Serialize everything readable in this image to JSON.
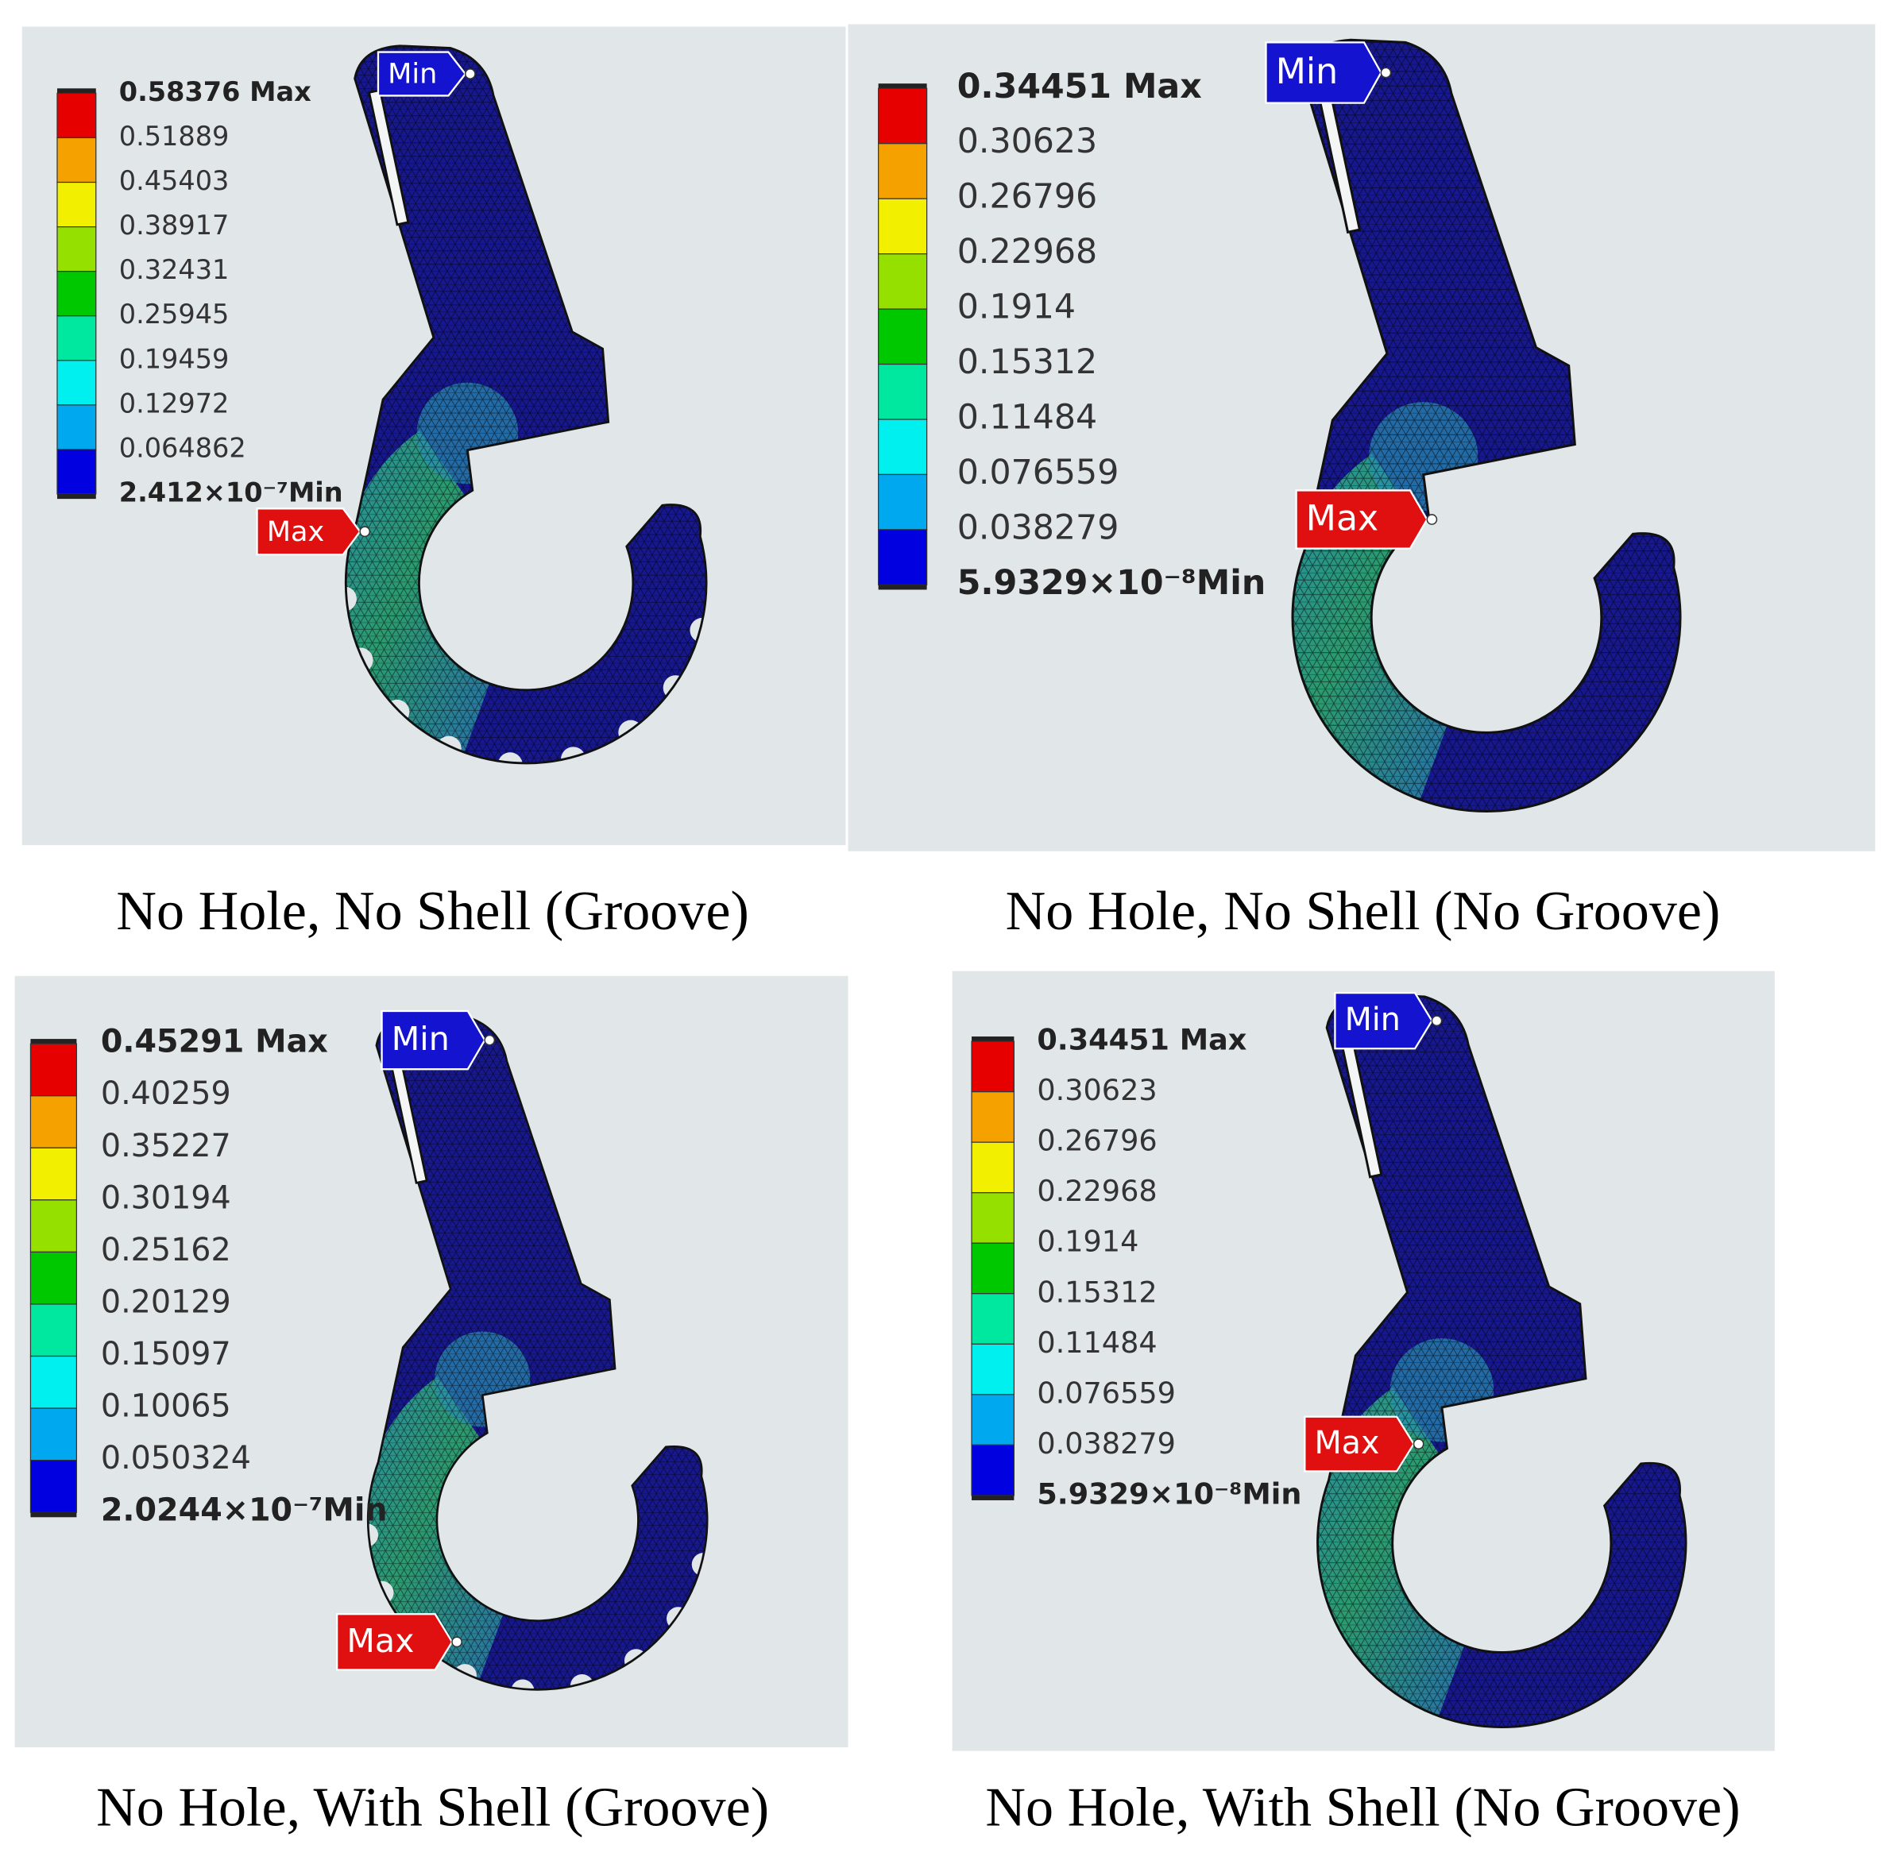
{
  "panels": [
    {
      "caption": "No Hole, No Shell (Groove)",
      "legend": {
        "labels": [
          "0.58376 Max",
          "0.51889",
          "0.45403",
          "0.38917",
          "0.32431",
          "0.25945",
          "0.19459",
          "0.12972",
          "0.064862",
          "2.412×10⁻⁷Min"
        ]
      },
      "min_tag": "Min",
      "max_tag": "Max"
    },
    {
      "caption": "No Hole, No Shell (No Groove)",
      "legend": {
        "labels": [
          "0.34451 Max",
          "0.30623",
          "0.26796",
          "0.22968",
          "0.1914",
          "0.15312",
          "0.11484",
          "0.076559",
          "0.038279",
          "5.9329×10⁻⁸Min"
        ]
      },
      "min_tag": "Min",
      "max_tag": "Max"
    },
    {
      "caption": "No Hole, With Shell (Groove)",
      "legend": {
        "labels": [
          "0.45291 Max",
          "0.40259",
          "0.35227",
          "0.30194",
          "0.25162",
          "0.20129",
          "0.15097",
          "0.10065",
          "0.050324",
          "2.0244×10⁻⁷Min"
        ]
      },
      "min_tag": "Min",
      "max_tag": "Max"
    },
    {
      "caption": "No Hole, With Shell (No Groove)",
      "legend": {
        "labels": [
          "0.34451 Max",
          "0.30623",
          "0.26796",
          "0.22968",
          "0.1914",
          "0.15312",
          "0.11484",
          "0.076559",
          "0.038279",
          "5.9329×10⁻⁸Min"
        ]
      },
      "min_tag": "Min",
      "max_tag": "Max"
    }
  ]
}
